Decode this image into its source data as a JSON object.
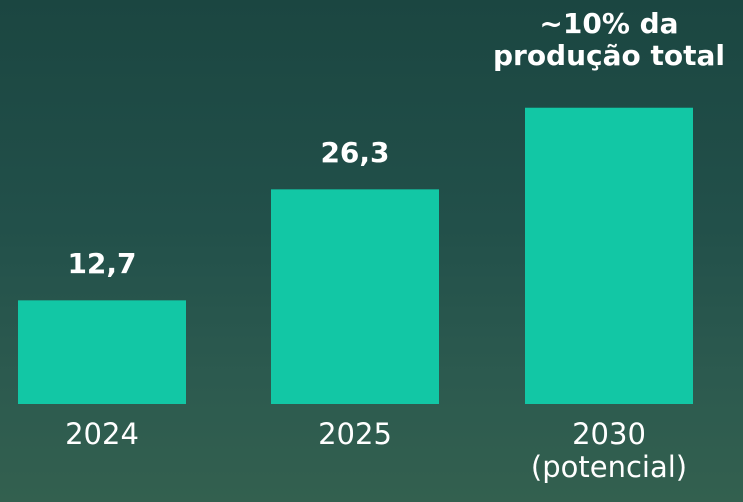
{
  "chart_data": {
    "type": "bar",
    "categories": [
      "2024",
      "2025",
      "2030 (potencial)"
    ],
    "values": [
      12.7,
      26.3,
      36.3
    ],
    "value_labels": [
      "12,7",
      "26,3",
      null
    ],
    "annotation": "~10% da produção total",
    "color": "#12c7a5",
    "ylim": [
      0,
      49.5
    ]
  }
}
